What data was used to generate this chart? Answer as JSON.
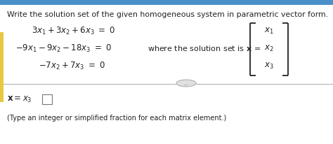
{
  "title": "Write the solution set of the given homogeneous system in parametric vector form.",
  "bg_color": "#e8e8e8",
  "panel_color": "#ffffff",
  "text_color": "#222222",
  "yellow_color": "#e8c840",
  "blue_bar_color": "#4a90c8",
  "divider_color": "#aaaaaa",
  "title_fontsize": 7.8,
  "eq_fontsize": 8.5,
  "note_fontsize": 7.0,
  "bottom_note": "(Type an integer or simplified fraction for each matrix element.)"
}
